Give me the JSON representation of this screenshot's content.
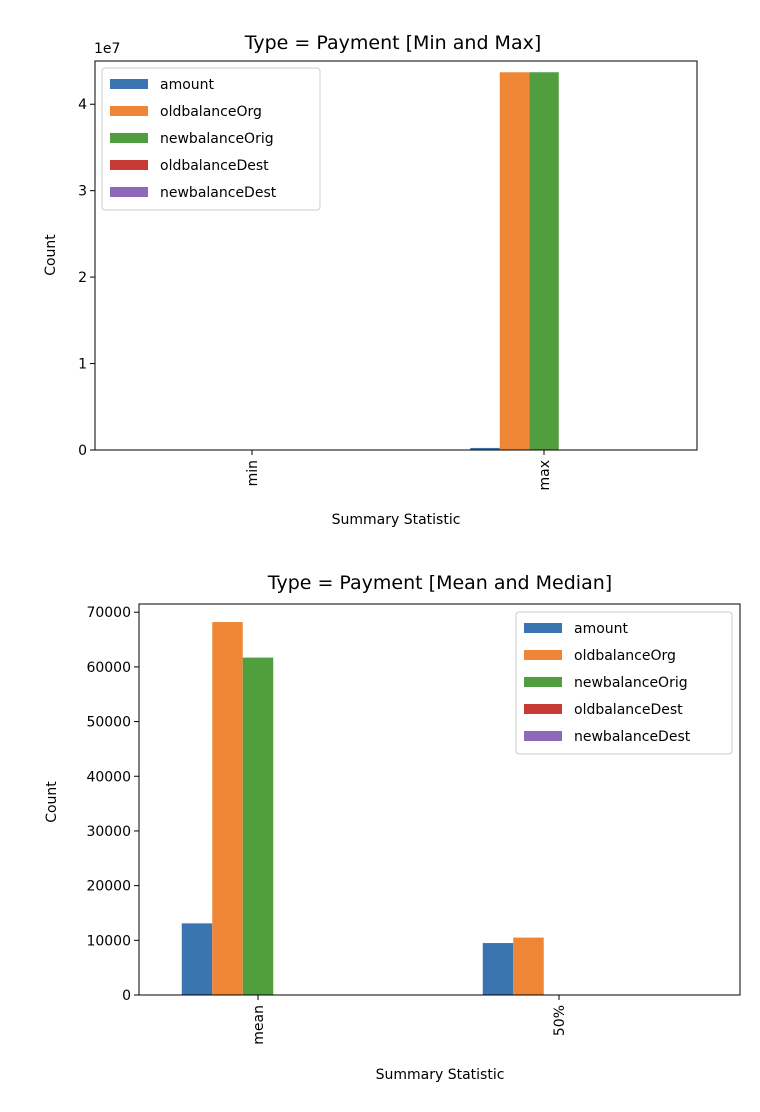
{
  "colors": {
    "amount": "#3a75af",
    "oldbalanceOrg": "#ef8636",
    "newbalanceOrig": "#519e3e",
    "oldbalanceDest": "#c53a32",
    "newbalanceDest": "#8d69b8"
  },
  "chart_data": [
    {
      "type": "bar",
      "title": "Type = Payment [Min and Max]",
      "xlabel": "Summary Statistic",
      "ylabel": "Count",
      "offset_text": "1e7",
      "categories": [
        "min",
        "max"
      ],
      "yticks": [
        0,
        1,
        2,
        3,
        4
      ],
      "ytick_labels": [
        "0",
        "1",
        "2",
        "3",
        "4"
      ],
      "ylim": [
        0,
        4.5
      ],
      "grid": false,
      "legend_position": "top-left",
      "series": [
        {
          "name": "amount",
          "values": [
            1e-06,
            0.024
          ]
        },
        {
          "name": "oldbalanceOrg",
          "values": [
            0.0,
            4.37
          ]
        },
        {
          "name": "newbalanceOrig",
          "values": [
            0.0,
            4.37
          ]
        },
        {
          "name": "oldbalanceDest",
          "values": [
            0.0,
            0.0
          ]
        },
        {
          "name": "newbalanceDest",
          "values": [
            0.0,
            0.0
          ]
        }
      ]
    },
    {
      "type": "bar",
      "title": "Type = Payment [Mean and Median]",
      "xlabel": "Summary Statistic",
      "ylabel": "Count",
      "categories": [
        "mean",
        "50%"
      ],
      "yticks": [
        0,
        10000,
        20000,
        30000,
        40000,
        50000,
        60000,
        70000
      ],
      "ytick_labels": [
        "0",
        "10000",
        "20000",
        "30000",
        "40000",
        "50000",
        "60000",
        "70000"
      ],
      "ylim": [
        0,
        71500
      ],
      "grid": false,
      "legend_position": "top-right",
      "series": [
        {
          "name": "amount",
          "values": [
            13100,
            9500
          ]
        },
        {
          "name": "oldbalanceOrg",
          "values": [
            68200,
            10500
          ]
        },
        {
          "name": "newbalanceOrig",
          "values": [
            61700,
            0
          ]
        },
        {
          "name": "oldbalanceDest",
          "values": [
            0,
            0
          ]
        },
        {
          "name": "newbalanceDest",
          "values": [
            0,
            0
          ]
        }
      ]
    }
  ]
}
